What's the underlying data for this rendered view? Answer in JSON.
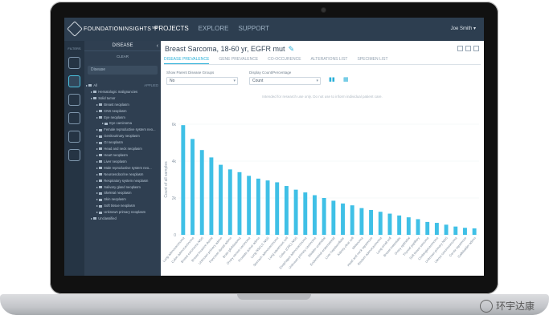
{
  "app": {
    "brand": "FOUNDATIONINSIGHTS™",
    "nav": [
      "PROJECTS",
      "EXPLORE",
      "SUPPORT"
    ],
    "user": "Joe Smith ▾"
  },
  "rail": {
    "label": "FILTERS"
  },
  "panel": {
    "header": "DISEASE",
    "clear": "CLEAR",
    "search_placeholder": "Disease",
    "tree": [
      {
        "label": "All",
        "right": "APPLIED"
      },
      {
        "label": "Hematologic malignancies"
      },
      {
        "label": "Solid tumor"
      },
      {
        "label": "Breast neoplasm"
      },
      {
        "label": "CNS neoplasm"
      },
      {
        "label": "Eye neoplasm"
      },
      {
        "label": "Eye carcinoma"
      },
      {
        "label": "Female reproductive system neo..."
      },
      {
        "label": "Genitourinary neoplasm"
      },
      {
        "label": "GI neoplasm"
      },
      {
        "label": "Head and neck neoplasm"
      },
      {
        "label": "Heart neoplasm"
      },
      {
        "label": "Liver neoplasm"
      },
      {
        "label": "Male reproductive system neo..."
      },
      {
        "label": "Neuroendocrine neoplasm"
      },
      {
        "label": "Respiratory system neoplasm"
      },
      {
        "label": "Salivary gland neoplasm"
      },
      {
        "label": "Skeletal neoplasm"
      },
      {
        "label": "Skin neoplasm"
      },
      {
        "label": "Soft tissue neoplasm"
      },
      {
        "label": "Unknown primary neoplasm"
      },
      {
        "label": "Unclassified"
      }
    ]
  },
  "main": {
    "title": "Breast Sarcoma, 18-60 yr, EGFR mut",
    "tabs": [
      "DISEASE PREVALENCE",
      "GENE PREVALENCE",
      "CO-OCCURENCE",
      "ALTERATIONS LIST",
      "SPECIMEN LIST"
    ],
    "controls": {
      "parent_label": "Show Parent Disease Groups",
      "parent_value": "No",
      "display_label": "Display Count/Percentage",
      "display_value": "Count"
    },
    "disclaimer": "Intended for research use only. Do not use to inform individual patient care."
  },
  "chart_data": {
    "type": "bar",
    "ylabel": "Count of all samples",
    "yticks": [
      "6k",
      "4k",
      "2k",
      "0"
    ],
    "ylim": [
      0,
      6000
    ],
    "color": "#3fc0e6",
    "categories": [
      "Lung adenocarcinoma",
      "Colon adenocarcinoma",
      "Breast carcinoma NOS",
      "Breast invasive ductal",
      "Unknown primary adeno",
      "Pancreas ductal adeno",
      "Brain glioblastoma",
      "Ovary serous carcinoma",
      "Prostate acinar adeno",
      "Lung NSCLC NOS",
      "Stomach adenocarcinoma",
      "Lung squamous cell",
      "Colon (CRC) NOS",
      "Esophagus adenocarcinoma",
      "Unknown primary carcinoma",
      "Bladder urothelial",
      "Endometrial endometrioid",
      "Liver hepatocellular",
      "Kidney clear cell",
      "Melanoma",
      "Head and neck squamous",
      "Rectum adenocarcinoma",
      "Lung small cell",
      "Breast metastatic",
      "Ovary epithelial",
      "Thyroid papillary",
      "Soft tissue sarcoma",
      "Cholangiocarcinoma",
      "Unknown primary NOS",
      "Uterus carcinosarcoma",
      "Cervix squamous",
      "Gallbladder adeno"
    ],
    "values": [
      5950,
      5200,
      4600,
      4200,
      3800,
      3550,
      3400,
      3200,
      3050,
      2950,
      2850,
      2650,
      2450,
      2300,
      2150,
      2000,
      1850,
      1700,
      1600,
      1450,
      1350,
      1250,
      1150,
      1050,
      950,
      850,
      700,
      650,
      550,
      450,
      380,
      350
    ]
  },
  "watermark": "环宇达康"
}
